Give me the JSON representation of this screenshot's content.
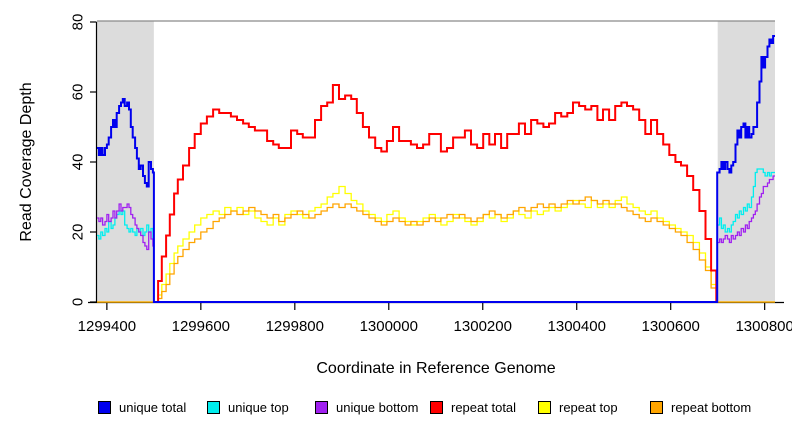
{
  "chart_data": {
    "type": "line",
    "title": "",
    "xlabel": "Coordinate in Reference Genome",
    "ylabel": "Read Coverage Depth",
    "xlim": [
      1299379,
      1300822
    ],
    "ylim": [
      0,
      80
    ],
    "xticks": [
      1299400,
      1299600,
      1299800,
      1300000,
      1300200,
      1300400,
      1300600,
      1300800
    ],
    "yticks": [
      0,
      20,
      40,
      60,
      80
    ],
    "grid": false,
    "shaded_regions": [
      {
        "x0": 1299379,
        "x1": 1299500,
        "color": "#dcdcdc"
      },
      {
        "x0": 1300700,
        "x1": 1300822,
        "color": "#dcdcdc"
      }
    ],
    "border_top_color": "#8a8a8a",
    "axis_color": "#000000",
    "step_interpolation": true,
    "series": [
      {
        "name": "repeat top",
        "color": "#ffff00",
        "width": 1.3,
        "x": [
          1299379,
          1299500,
          1299509,
          1299517,
          1299526,
          1299534,
          1299543,
          1299551,
          1299562,
          1299575,
          1299587,
          1299600,
          1299613,
          1299626,
          1299639,
          1299651,
          1299664,
          1299677,
          1299690,
          1299702,
          1299715,
          1299728,
          1299741,
          1299754,
          1299766,
          1299779,
          1299792,
          1299805,
          1299817,
          1299830,
          1299843,
          1299856,
          1299869,
          1299881,
          1299894,
          1299907,
          1299920,
          1299932,
          1299945,
          1299958,
          1299971,
          1299984,
          1299996,
          1300009,
          1300022,
          1300035,
          1300047,
          1300060,
          1300073,
          1300086,
          1300099,
          1300111,
          1300124,
          1300137,
          1300150,
          1300162,
          1300175,
          1300188,
          1300201,
          1300214,
          1300226,
          1300239,
          1300252,
          1300265,
          1300277,
          1300290,
          1300303,
          1300316,
          1300329,
          1300341,
          1300354,
          1300367,
          1300380,
          1300392,
          1300405,
          1300418,
          1300431,
          1300444,
          1300456,
          1300469,
          1300482,
          1300495,
          1300507,
          1300520,
          1300533,
          1300546,
          1300558,
          1300571,
          1300584,
          1300597,
          1300610,
          1300622,
          1300635,
          1300648,
          1300661,
          1300674,
          1300686,
          1300697,
          1300822
        ],
        "y": [
          0,
          0,
          2,
          5,
          8,
          11,
          14,
          16,
          18,
          20,
          22,
          24,
          25,
          26,
          25,
          27,
          26,
          27,
          25,
          26,
          24,
          23,
          22,
          24,
          22,
          25,
          26,
          25,
          24,
          26,
          27,
          28,
          30,
          31,
          33,
          31,
          29,
          28,
          26,
          25,
          24,
          23,
          25,
          26,
          24,
          23,
          22,
          23,
          24,
          25,
          24,
          22,
          23,
          25,
          24,
          23,
          22,
          23,
          25,
          24,
          25,
          23,
          24,
          26,
          25,
          24,
          26,
          25,
          26,
          27,
          26,
          27,
          28,
          29,
          28,
          27,
          29,
          27,
          28,
          27,
          29,
          30,
          28,
          27,
          26,
          25,
          26,
          24,
          23,
          22,
          21,
          20,
          19,
          17,
          14,
          10,
          5,
          0,
          0
        ]
      },
      {
        "name": "repeat bottom",
        "color": "#ffa500",
        "width": 1.3,
        "x": [
          1299379,
          1299500,
          1299509,
          1299517,
          1299526,
          1299534,
          1299543,
          1299551,
          1299562,
          1299575,
          1299587,
          1299600,
          1299613,
          1299626,
          1299639,
          1299651,
          1299664,
          1299677,
          1299690,
          1299702,
          1299715,
          1299728,
          1299741,
          1299754,
          1299766,
          1299779,
          1299792,
          1299805,
          1299817,
          1299830,
          1299843,
          1299856,
          1299869,
          1299881,
          1299894,
          1299907,
          1299920,
          1299932,
          1299945,
          1299958,
          1299971,
          1299984,
          1299996,
          1300009,
          1300022,
          1300035,
          1300047,
          1300060,
          1300073,
          1300086,
          1300099,
          1300111,
          1300124,
          1300137,
          1300150,
          1300162,
          1300175,
          1300188,
          1300201,
          1300214,
          1300226,
          1300239,
          1300252,
          1300265,
          1300277,
          1300290,
          1300303,
          1300316,
          1300329,
          1300341,
          1300354,
          1300367,
          1300380,
          1300392,
          1300405,
          1300418,
          1300431,
          1300444,
          1300456,
          1300469,
          1300482,
          1300495,
          1300507,
          1300520,
          1300533,
          1300546,
          1300558,
          1300571,
          1300584,
          1300597,
          1300610,
          1300622,
          1300635,
          1300648,
          1300661,
          1300674,
          1300686,
          1300697,
          1300822
        ],
        "y": [
          0,
          0,
          1,
          3,
          5,
          8,
          11,
          13,
          15,
          17,
          18,
          20,
          21,
          23,
          24,
          25,
          26,
          25,
          26,
          27,
          26,
          25,
          24,
          25,
          23,
          24,
          25,
          26,
          25,
          24,
          25,
          26,
          27,
          28,
          27,
          28,
          27,
          26,
          25,
          24,
          23,
          22,
          23,
          24,
          23,
          22,
          23,
          22,
          23,
          24,
          23,
          24,
          25,
          24,
          25,
          24,
          23,
          24,
          25,
          26,
          25,
          24,
          25,
          26,
          27,
          26,
          27,
          28,
          27,
          28,
          27,
          28,
          29,
          28,
          29,
          30,
          29,
          28,
          29,
          28,
          28,
          27,
          26,
          25,
          24,
          23,
          24,
          23,
          22,
          21,
          20,
          19,
          17,
          15,
          12,
          9,
          4,
          0,
          0
        ]
      },
      {
        "name": "unique top",
        "color": "#00eeee",
        "width": 1.3,
        "x": [
          1299379,
          1299383,
          1299387,
          1299391,
          1299396,
          1299400,
          1299404,
          1299409,
          1299413,
          1299417,
          1299421,
          1299426,
          1299430,
          1299434,
          1299438,
          1299443,
          1299447,
          1299451,
          1299455,
          1299460,
          1299464,
          1299468,
          1299472,
          1299477,
          1299481,
          1299485,
          1299489,
          1299494,
          1299498,
          1299500,
          1300698,
          1300699,
          1300704,
          1300708,
          1300712,
          1300716,
          1300721,
          1300725,
          1300729,
          1300733,
          1300738,
          1300742,
          1300746,
          1300750,
          1300755,
          1300759,
          1300763,
          1300767,
          1300772,
          1300776,
          1300780,
          1300784,
          1300789,
          1300793,
          1300797,
          1300801,
          1300806,
          1300810,
          1300814,
          1300818,
          1300822
        ],
        "y": [
          19,
          18,
          20,
          19,
          21,
          20,
          23,
          21,
          22,
          24,
          25,
          26,
          25,
          26,
          22,
          21,
          20,
          21,
          20,
          19,
          21,
          20,
          21,
          19,
          20,
          22,
          20,
          21,
          18,
          0,
          0,
          22,
          24,
          21,
          22,
          20,
          21,
          20,
          22,
          23,
          25,
          24,
          26,
          25,
          27,
          26,
          28,
          27,
          30,
          33,
          37,
          38,
          38,
          38,
          37,
          36,
          37,
          36,
          37,
          37,
          37
        ]
      },
      {
        "name": "unique bottom",
        "color": "#a020f0",
        "width": 1.3,
        "x": [
          1299379,
          1299383,
          1299387,
          1299391,
          1299396,
          1299400,
          1299404,
          1299409,
          1299413,
          1299417,
          1299421,
          1299426,
          1299430,
          1299434,
          1299438,
          1299443,
          1299447,
          1299451,
          1299455,
          1299460,
          1299464,
          1299468,
          1299472,
          1299477,
          1299481,
          1299485,
          1299489,
          1299494,
          1299498,
          1299500,
          1300698,
          1300699,
          1300704,
          1300708,
          1300712,
          1300716,
          1300721,
          1300725,
          1300729,
          1300733,
          1300738,
          1300742,
          1300746,
          1300750,
          1300755,
          1300759,
          1300763,
          1300767,
          1300772,
          1300776,
          1300780,
          1300784,
          1300789,
          1300793,
          1300797,
          1300801,
          1300806,
          1300810,
          1300814,
          1300818,
          1300822
        ],
        "y": [
          24,
          23,
          24,
          22,
          23,
          25,
          23,
          24,
          26,
          24,
          26,
          28,
          26,
          27,
          27,
          28,
          27,
          25,
          24,
          22,
          21,
          20,
          19,
          17,
          16,
          15,
          20,
          18,
          16,
          0,
          0,
          17,
          18,
          17,
          18,
          19,
          18,
          17,
          19,
          18,
          19,
          20,
          19,
          21,
          20,
          22,
          21,
          23,
          24,
          25,
          26,
          28,
          30,
          31,
          33,
          33,
          34,
          35,
          35,
          36,
          36
        ]
      },
      {
        "name": "repeat total",
        "color": "#ff0000",
        "width": 2,
        "x": [
          1299500,
          1299509,
          1299517,
          1299526,
          1299534,
          1299543,
          1299551,
          1299562,
          1299575,
          1299587,
          1299600,
          1299613,
          1299626,
          1299639,
          1299651,
          1299664,
          1299677,
          1299690,
          1299702,
          1299715,
          1299728,
          1299741,
          1299754,
          1299766,
          1299779,
          1299792,
          1299805,
          1299817,
          1299830,
          1299843,
          1299856,
          1299869,
          1299881,
          1299894,
          1299907,
          1299920,
          1299932,
          1299945,
          1299958,
          1299971,
          1299984,
          1299996,
          1300009,
          1300022,
          1300035,
          1300047,
          1300060,
          1300073,
          1300086,
          1300099,
          1300111,
          1300124,
          1300137,
          1300150,
          1300162,
          1300175,
          1300188,
          1300201,
          1300214,
          1300226,
          1300239,
          1300252,
          1300265,
          1300277,
          1300290,
          1300303,
          1300316,
          1300329,
          1300341,
          1300354,
          1300367,
          1300380,
          1300392,
          1300405,
          1300418,
          1300431,
          1300444,
          1300456,
          1300469,
          1300482,
          1300495,
          1300507,
          1300520,
          1300533,
          1300546,
          1300558,
          1300571,
          1300584,
          1300597,
          1300610,
          1300622,
          1300635,
          1300648,
          1300661,
          1300674,
          1300686,
          1300697
        ],
        "y": [
          0,
          6,
          13,
          19,
          25,
          31,
          35,
          39,
          44,
          48,
          51,
          53,
          55,
          54,
          54,
          53,
          52,
          51,
          50,
          49,
          49,
          46,
          45,
          44,
          44,
          49,
          48,
          47,
          47,
          52,
          56,
          57,
          62,
          58,
          59,
          58,
          54,
          50,
          47,
          44,
          43,
          46,
          50,
          46,
          46,
          45,
          44,
          45,
          48,
          48,
          43,
          44,
          47,
          47,
          49,
          45,
          44,
          48,
          45,
          48,
          44,
          48,
          48,
          51,
          48,
          52,
          51,
          50,
          51,
          54,
          53,
          54,
          57,
          56,
          55,
          56,
          52,
          55,
          52,
          56,
          57,
          56,
          55,
          52,
          48,
          52,
          48,
          45,
          42,
          40,
          39,
          36,
          32,
          26,
          18,
          9,
          0
        ]
      },
      {
        "name": "unique total",
        "color": "#0000ee",
        "width": 2,
        "x": [
          1299379,
          1299383,
          1299387,
          1299391,
          1299396,
          1299400,
          1299404,
          1299409,
          1299413,
          1299417,
          1299421,
          1299426,
          1299430,
          1299434,
          1299438,
          1299443,
          1299447,
          1299451,
          1299455,
          1299460,
          1299464,
          1299468,
          1299472,
          1299477,
          1299481,
          1299485,
          1299489,
          1299494,
          1299498,
          1299500,
          1300698,
          1300699,
          1300704,
          1300708,
          1300712,
          1300716,
          1300721,
          1300725,
          1300729,
          1300733,
          1300738,
          1300742,
          1300746,
          1300750,
          1300755,
          1300759,
          1300763,
          1300767,
          1300772,
          1300776,
          1300780,
          1300784,
          1300789,
          1300793,
          1300797,
          1300801,
          1300806,
          1300810,
          1300814,
          1300818,
          1300822
        ],
        "y": [
          44,
          42,
          44,
          42,
          44,
          45,
          47,
          50,
          52,
          50,
          54,
          56,
          57,
          58,
          56,
          57,
          55,
          50,
          47,
          44,
          41,
          38,
          39,
          36,
          34,
          33,
          40,
          38,
          37,
          0,
          0,
          37,
          38,
          40,
          38,
          40,
          38,
          37,
          39,
          40,
          45,
          49,
          47,
          50,
          51,
          47,
          50,
          47,
          48,
          50,
          50,
          57,
          63,
          70,
          67,
          70,
          73,
          75,
          74,
          76,
          76
        ]
      }
    ]
  },
  "legend": {
    "items": [
      {
        "label": "unique total",
        "color": "#0000ee",
        "x": 98
      },
      {
        "label": "unique top",
        "color": "#00eeee",
        "x": 207
      },
      {
        "label": "unique bottom",
        "color": "#a020f0",
        "x": 315
      },
      {
        "label": "repeat total",
        "color": "#ff0000",
        "x": 430
      },
      {
        "label": "repeat top",
        "color": "#ffff00",
        "x": 538
      },
      {
        "label": "repeat bottom",
        "color": "#ffa500",
        "x": 650
      }
    ]
  }
}
